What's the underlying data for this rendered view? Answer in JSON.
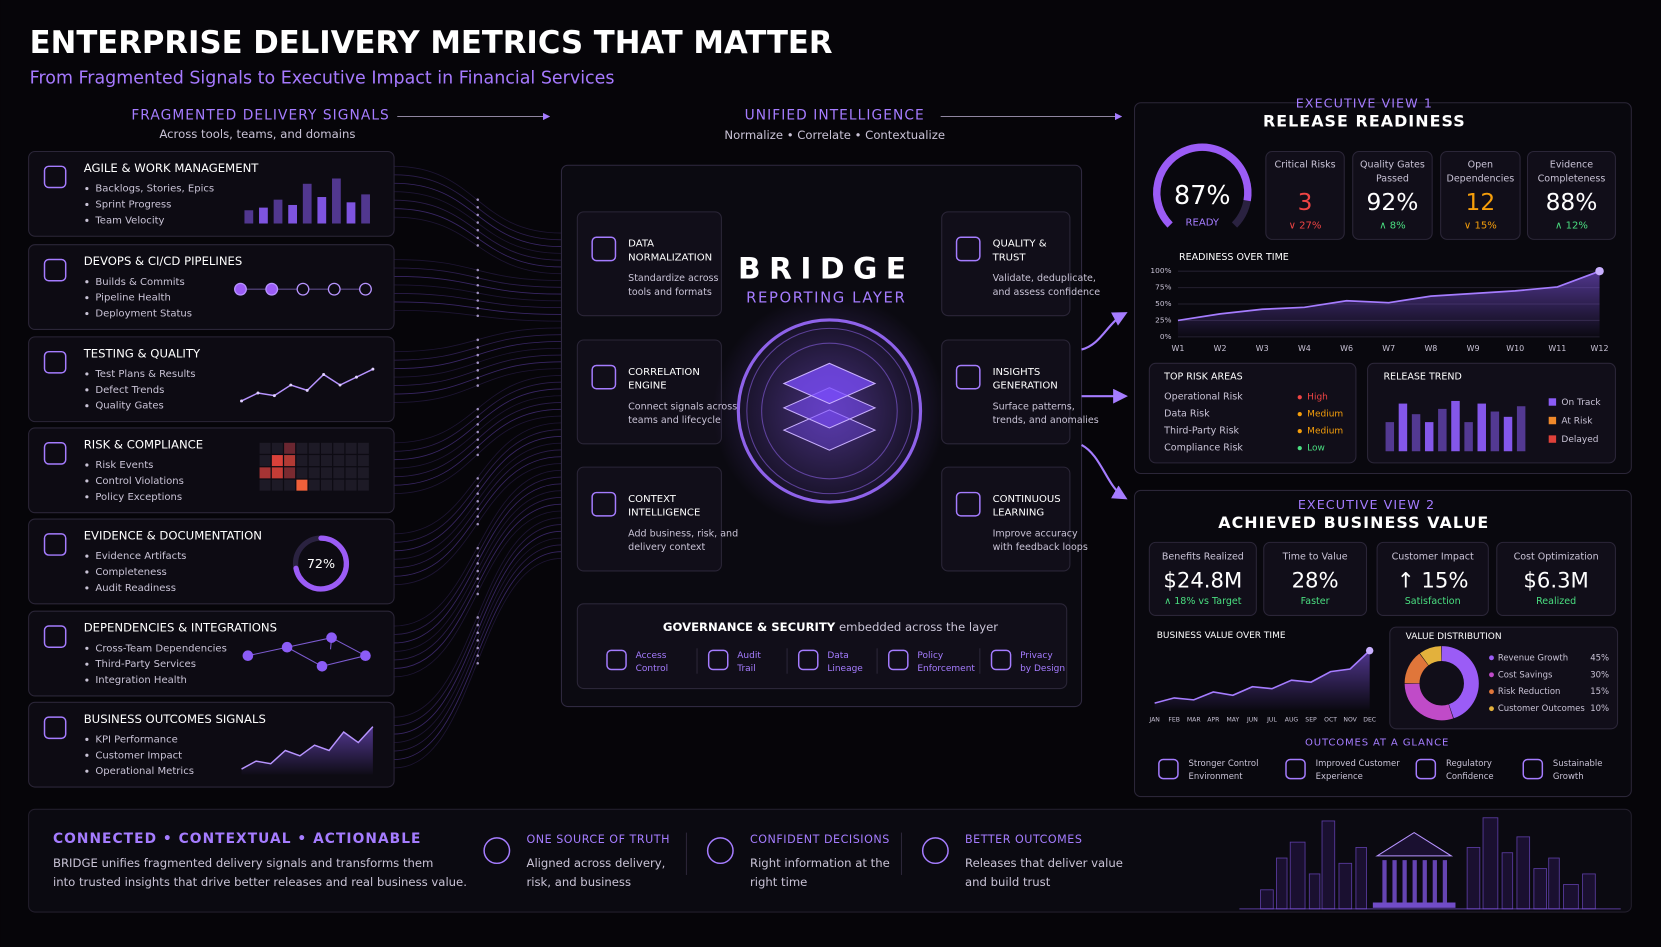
{
  "header": {
    "title": "ENTERPRISE DELIVERY METRICS THAT MATTER",
    "subtitle": "From Fragmented Signals to Executive Impact in Financial Services"
  },
  "signals": {
    "title": "FRAGMENTED DELIVERY SIGNALS",
    "subtitle": "Across tools, teams, and domains",
    "cards": [
      {
        "title": "AGILE & WORK MANAGEMENT",
        "items": [
          "Backlogs, Stories, Epics",
          "Sprint Progress",
          "Team Velocity"
        ],
        "chart": "bar",
        "ylim": [
          0,
          100
        ],
        "values": [
          25,
          30,
          45,
          35,
          75,
          50,
          85,
          40,
          55
        ]
      },
      {
        "title": "DEVOPS & CI/CD PIPELINES",
        "items": [
          "Builds & Commits",
          "Pipeline Health",
          "Deployment Status"
        ],
        "chart": "pipeline"
      },
      {
        "title": "TESTING & QUALITY",
        "items": [
          "Test Plans & Results",
          "Defect Trends",
          "Quality Gates"
        ],
        "chart": "line",
        "ylim": [
          0,
          100
        ],
        "values": [
          15,
          30,
          25,
          45,
          35,
          65,
          45,
          60,
          75
        ]
      },
      {
        "title": "RISK & COMPLIANCE",
        "items": [
          "Risk Events",
          "Control Violations",
          "Policy Exceptions"
        ],
        "chart": "heatmap"
      },
      {
        "title": "EVIDENCE & DOCUMENTATION",
        "items": [
          "Evidence Artifacts",
          "Completeness",
          "Audit Readiness"
        ],
        "chart": "gauge",
        "value": 72,
        "value_label": "72%"
      },
      {
        "title": "DEPENDENCIES & INTEGRATIONS",
        "items": [
          "Cross-Team Dependencies",
          "Third-Party Services",
          "Integration Health"
        ],
        "chart": "network"
      },
      {
        "title": "BUSINESS OUTCOMES SIGNALS",
        "items": [
          "KPI Performance",
          "Customer Impact",
          "Operational Metrics"
        ],
        "chart": "area",
        "ylim": [
          0,
          100
        ],
        "values": [
          10,
          25,
          20,
          45,
          35,
          55,
          45,
          80,
          60,
          90
        ]
      }
    ]
  },
  "bridge": {
    "title": "UNIFIED INTELLIGENCE",
    "subtitle": "Normalize • Correlate • Contextualize",
    "name": "BRIDGE",
    "layer": "REPORTING LAYER",
    "features": [
      {
        "title": [
          "DATA",
          "NORMALIZATION"
        ],
        "desc": [
          "Standardize across",
          "tools and formats"
        ]
      },
      {
        "title": [
          "CORRELATION",
          "ENGINE"
        ],
        "desc": [
          "Connect signals across",
          "teams and lifecycle"
        ]
      },
      {
        "title": [
          "CONTEXT",
          "INTELLIGENCE"
        ],
        "desc": [
          "Add business, risk, and",
          "delivery context"
        ]
      },
      {
        "title": [
          "QUALITY &",
          "TRUST"
        ],
        "desc": [
          "Validate, deduplicate,",
          "and assess confidence"
        ]
      },
      {
        "title": [
          "INSIGHTS",
          "GENERATION"
        ],
        "desc": [
          "Surface patterns,",
          "trends, and anomalies"
        ]
      },
      {
        "title": [
          "CONTINUOUS",
          "LEARNING"
        ],
        "desc": [
          "Improve accuracy",
          "with feedback loops"
        ]
      }
    ],
    "governance": {
      "title": "GOVERNANCE & SECURITY",
      "subtitle": "embedded across the layer",
      "items": [
        [
          "Access",
          "Control"
        ],
        [
          "Audit",
          "Trail"
        ],
        [
          "Data",
          "Lineage"
        ],
        [
          "Policy",
          "Enforcement"
        ],
        [
          "Privacy",
          "by Design"
        ]
      ]
    }
  },
  "exec1": {
    "kicker": "EXECUTIVE VIEW 1",
    "title": "RELEASE READINESS",
    "gauge": {
      "value": 87,
      "label": "87%",
      "caption": "READY"
    },
    "kpis": [
      {
        "label": [
          "Critical Risks"
        ],
        "value": "3",
        "change": "∨ 27%",
        "color": "#ef4444"
      },
      {
        "label": [
          "Quality Gates",
          "Passed"
        ],
        "value": "92%",
        "change": "∧ 8%",
        "color": "#4ade80"
      },
      {
        "label": [
          "Open",
          "Dependencies"
        ],
        "value": "12",
        "change": "∨ 15%",
        "color": "#f59e0b"
      },
      {
        "label": [
          "Evidence",
          "Completeness"
        ],
        "value": "88%",
        "change": "∧ 12%",
        "color": "#4ade80"
      }
    ],
    "readiness": {
      "title": "READINESS OVER TIME",
      "x": [
        "W1",
        "W2",
        "W3",
        "W4",
        "W6",
        "W7",
        "W8",
        "W9",
        "W10",
        "W11",
        "W12"
      ],
      "values": [
        25,
        35,
        42,
        45,
        55,
        52,
        62,
        66,
        70,
        76,
        100
      ],
      "ylim": [
        0,
        100
      ],
      "yticks": [
        {
          "value": 0,
          "label": "0%"
        },
        {
          "value": 25,
          "label": "25%"
        },
        {
          "value": 50,
          "label": "50%"
        },
        {
          "value": 75,
          "label": "75%"
        },
        {
          "value": 100,
          "label": "100%"
        }
      ]
    },
    "risks": {
      "title": "TOP RISK AREAS",
      "rows": [
        {
          "name": "Operational Risk",
          "level": "High",
          "color": "#ef4444"
        },
        {
          "name": "Data Risk",
          "level": "Medium",
          "color": "#f59e0b"
        },
        {
          "name": "Third-Party Risk",
          "level": "Medium",
          "color": "#f59e0b"
        },
        {
          "name": "Compliance Risk",
          "level": "Low",
          "color": "#4ade80"
        }
      ]
    },
    "trend": {
      "title": "RELEASE TREND",
      "ylim": [
        0,
        100
      ],
      "values": [
        55,
        90,
        70,
        55,
        80,
        95,
        55,
        90,
        75,
        65,
        85
      ],
      "series": [
        {
          "name": "On Track",
          "color": "#8b5cf6"
        },
        {
          "name": "At Risk",
          "color": "#f0892a"
        },
        {
          "name": "Delayed",
          "color": "#e0413a"
        }
      ]
    }
  },
  "exec2": {
    "kicker": "EXECUTIVE VIEW 2",
    "title": "ACHIEVED BUSINESS VALUE",
    "kpis": [
      {
        "label": "Benefits Realized",
        "value": "$24.8M",
        "sub": "∧ 18% vs Target"
      },
      {
        "label": "Time to Value",
        "value": "28%",
        "sub": "Faster"
      },
      {
        "label": "Customer Impact",
        "value": "↑ 15%",
        "sub": "Satisfaction"
      },
      {
        "label": "Cost Optimization",
        "value": "$6.3M",
        "sub": "Realized"
      }
    ],
    "value_chart": {
      "title": "BUSINESS VALUE OVER TIME",
      "x": [
        "JAN",
        "FEB",
        "MAR",
        "APR",
        "MAY",
        "JUN",
        "JUL",
        "AUG",
        "SEP",
        "OCT",
        "NOV",
        "DEC"
      ],
      "values": [
        10,
        18,
        15,
        27,
        22,
        35,
        32,
        45,
        42,
        58,
        62,
        90
      ],
      "ylim": [
        0,
        100
      ]
    },
    "distribution": {
      "title": "VALUE DISTRIBUTION",
      "items": [
        {
          "name": "Revenue Growth",
          "value": 45,
          "value_label": "45%",
          "color": "#9b5cf6"
        },
        {
          "name": "Cost Savings",
          "value": 30,
          "value_label": "30%",
          "color": "#c04bc8"
        },
        {
          "name": "Risk Reduction",
          "value": 15,
          "value_label": "15%",
          "color": "#e0763a"
        },
        {
          "name": "Customer Outcomes",
          "value": 10,
          "value_label": "10%",
          "color": "#e3b13c"
        }
      ]
    },
    "outcomes": {
      "title": "OUTCOMES AT A GLANCE",
      "items": [
        [
          "Stronger Control",
          "Environment"
        ],
        [
          "Improved Customer",
          "Experience"
        ],
        [
          "Regulatory",
          "Confidence"
        ],
        [
          "Sustainable",
          "Growth"
        ]
      ]
    }
  },
  "footer": {
    "tagline": "CONNECTED • CONTEXTUAL • ACTIONABLE",
    "description": [
      "BRIDGE unifies fragmented delivery signals and transforms them",
      "into trusted insights that drive better releases and real business value."
    ],
    "pillars": [
      {
        "title": "ONE SOURCE OF TRUTH",
        "lines": [
          "Aligned across delivery,",
          "risk, and business"
        ]
      },
      {
        "title": "CONFIDENT DECISIONS",
        "lines": [
          "Right information at the",
          "right time"
        ]
      },
      {
        "title": "BETTER OUTCOMES",
        "lines": [
          "Releases that deliver value",
          "and build trust"
        ]
      }
    ]
  }
}
